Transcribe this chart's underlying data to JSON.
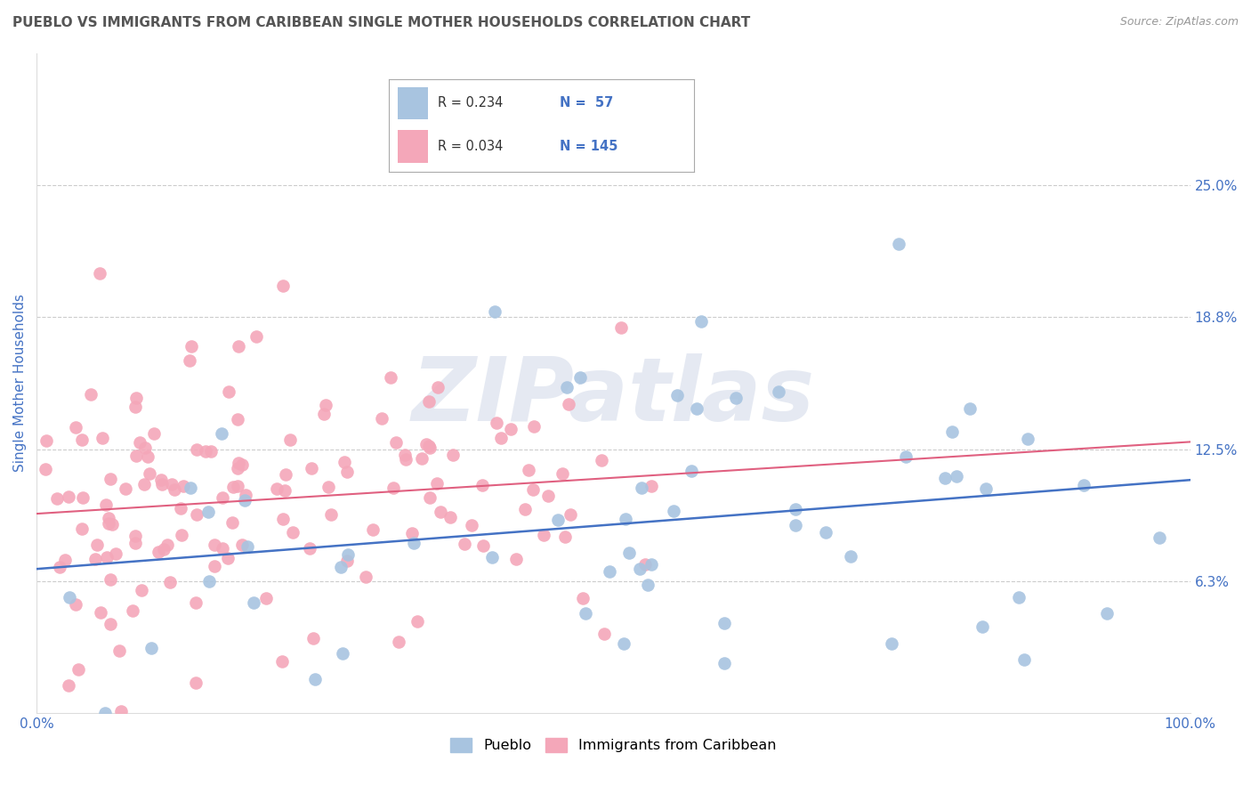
{
  "title": "PUEBLO VS IMMIGRANTS FROM CARIBBEAN SINGLE MOTHER HOUSEHOLDS CORRELATION CHART",
  "source_text": "Source: ZipAtlas.com",
  "ylabel": "Single Mother Households",
  "xlim": [
    0,
    100
  ],
  "ylim": [
    0,
    31.25
  ],
  "yticks": [
    6.25,
    12.5,
    18.75,
    25.0
  ],
  "ytick_labels": [
    "6.3%",
    "12.5%",
    "18.8%",
    "25.0%"
  ],
  "xtick_positions": [
    0,
    100
  ],
  "xtick_labels": [
    "0.0%",
    "100.0%"
  ],
  "blue_color": "#a8c4e0",
  "pink_color": "#f4a7b9",
  "blue_line_color": "#4472c4",
  "pink_line_color": "#e06080",
  "axis_label_color": "#4472c4",
  "tick_label_color": "#4472c4",
  "R_blue": 0.234,
  "N_blue": 57,
  "R_pink": 0.034,
  "N_pink": 145,
  "watermark": "ZIPatlas",
  "background_color": "#ffffff",
  "grid_color": "#cccccc",
  "legend_r_color": "#4472c4",
  "blue_seed": 12,
  "pink_seed": 99
}
